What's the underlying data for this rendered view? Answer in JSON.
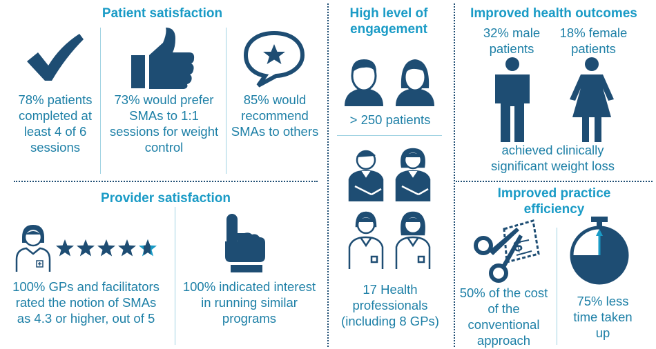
{
  "colors": {
    "title": "#1a9bc6",
    "text": "#1c7fa6",
    "icon": "#1e4d73",
    "star_accent": "#1a9bc6"
  },
  "patient_satisfaction": {
    "title": "Patient satisfaction",
    "completed": "78% patients completed at least 4 of 6 sessions",
    "prefer": "73% would prefer SMAs to 1:1 sessions for weight control",
    "recommend": "85% would recommend SMAs to others"
  },
  "provider_satisfaction": {
    "title": "Provider satisfaction",
    "rating": 4.3,
    "rating_max": 5,
    "rated": "100% GPs and facilitators rated the notion of SMAs as 4.3 or higher, out of 5",
    "interest": "100% indicated interest in running similar programs"
  },
  "engagement": {
    "title": "High level of engagement",
    "patients": "> 250 patients",
    "professionals": "17 Health professionals (including 8 GPs)"
  },
  "health_outcomes": {
    "title": "Improved health outcomes",
    "male": "32% male patients",
    "female": "18% female patients",
    "caption": "achieved clinically significant weight loss"
  },
  "practice_efficiency": {
    "title": "Improved practice efficiency",
    "cost": "50% of the cost of the conventional approach",
    "time": "75% less time taken up"
  },
  "icons": [
    "checkmark-icon",
    "thumbs-up-icon",
    "speech-star-icon",
    "patients-icon",
    "health-professionals-icon",
    "male-figure-icon",
    "female-figure-icon",
    "gp-icon",
    "rating-stars-icon",
    "pointing-hand-icon",
    "scissors-coupon-icon",
    "stopwatch-icon"
  ]
}
